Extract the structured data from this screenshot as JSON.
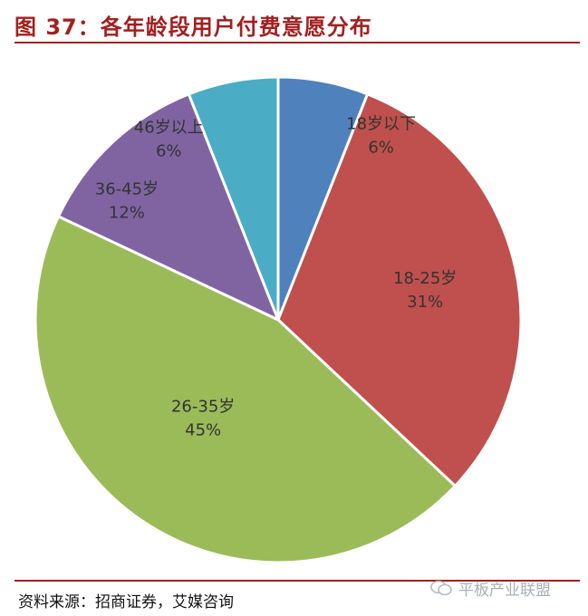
{
  "figure": {
    "title": "图 37：各年龄段用户付费意愿分布",
    "source": "资料来源：招商证券，艾媒咨询",
    "watermark": "平板产业联盟"
  },
  "colors": {
    "title_red": "#a31f1f",
    "rule": "#a31f1f"
  },
  "chart_data": {
    "type": "pie",
    "start_angle_deg": 0,
    "direction": "clockwise",
    "slices": [
      {
        "label": "18岁以下",
        "value": 6,
        "pct_label": "6%",
        "color": "#4f81bd"
      },
      {
        "label": "18-25岁",
        "value": 31,
        "pct_label": "31%",
        "color": "#c0504d"
      },
      {
        "label": "26-35岁",
        "value": 45,
        "pct_label": "45%",
        "color": "#9bbb59"
      },
      {
        "label": "36-45岁",
        "value": 12,
        "pct_label": "12%",
        "color": "#8064a2"
      },
      {
        "label": "46岁以上",
        "value": 6,
        "pct_label": "6%",
        "color": "#4bacc6"
      }
    ]
  }
}
